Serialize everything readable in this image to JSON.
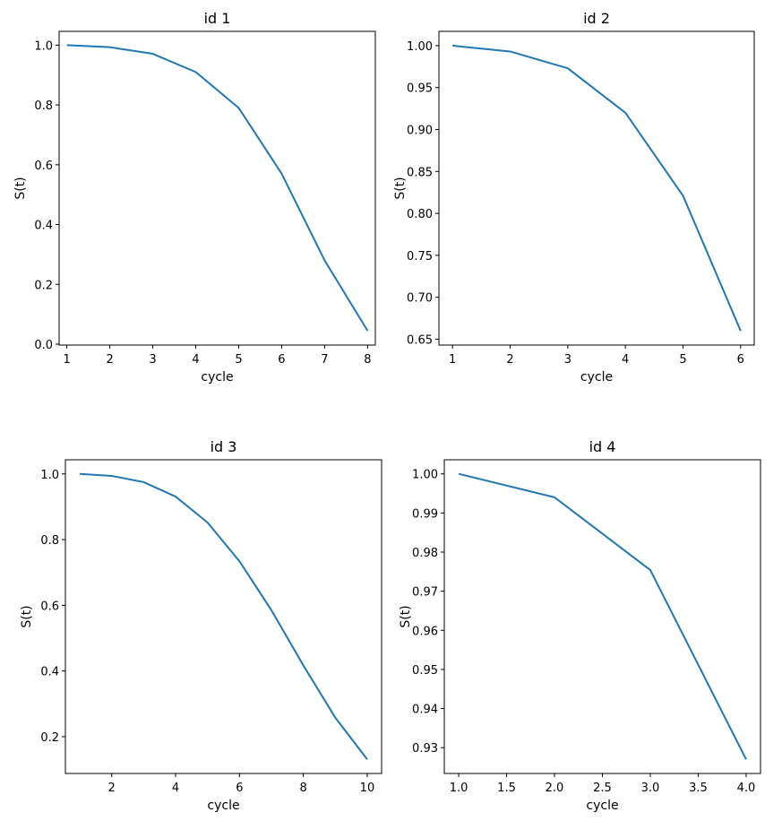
{
  "chart_data": [
    {
      "type": "line",
      "title": "id 1",
      "xlabel": "cycle",
      "ylabel": "S(t)",
      "x": [
        1,
        2,
        3,
        4,
        5,
        6,
        7,
        8
      ],
      "series": [
        {
          "values": [
            1.0,
            0.993,
            0.971,
            0.91,
            0.79,
            0.57,
            0.28,
            0.045
          ]
        }
      ],
      "xlim": [
        0.82,
        8.18
      ],
      "ylim": [
        -0.003,
        1.046
      ],
      "xticks": [
        1,
        2,
        3,
        4,
        5,
        6,
        7,
        8
      ],
      "xtick_labels": [
        "1",
        "2",
        "3",
        "4",
        "5",
        "6",
        "7",
        "8"
      ],
      "yticks": [
        0.0,
        0.2,
        0.4,
        0.6,
        0.8,
        1.0
      ],
      "ytick_labels": [
        "0.0",
        "0.2",
        "0.4",
        "0.6",
        "0.8",
        "1.0"
      ],
      "color": "#1f77b4"
    },
    {
      "type": "line",
      "title": "id 2",
      "xlabel": "cycle",
      "ylabel": "S(t)",
      "x": [
        1,
        2,
        3,
        4,
        5,
        6
      ],
      "series": [
        {
          "values": [
            1.0,
            0.993,
            0.973,
            0.92,
            0.821,
            0.66
          ]
        }
      ],
      "xlim": [
        0.764,
        6.236
      ],
      "ylim": [
        0.643,
        1.017
      ],
      "xticks": [
        1,
        2,
        3,
        4,
        5,
        6
      ],
      "xtick_labels": [
        "1",
        "2",
        "3",
        "4",
        "5",
        "6"
      ],
      "yticks": [
        0.65,
        0.7,
        0.75,
        0.8,
        0.85,
        0.9,
        0.95,
        1.0
      ],
      "ytick_labels": [
        "0.65",
        "0.70",
        "0.75",
        "0.80",
        "0.85",
        "0.90",
        "0.95",
        "1.00"
      ],
      "color": "#1f77b4"
    },
    {
      "type": "line",
      "title": "id 3",
      "xlabel": "cycle",
      "ylabel": "S(t)",
      "x": [
        1,
        2,
        3,
        4,
        5,
        6,
        7,
        8,
        9,
        10
      ],
      "series": [
        {
          "values": [
            1.0,
            0.994,
            0.975,
            0.931,
            0.852,
            0.734,
            0.585,
            0.417,
            0.258,
            0.131
          ]
        }
      ],
      "xlim": [
        0.55,
        10.45
      ],
      "ylim": [
        0.088,
        1.043
      ],
      "xticks": [
        2,
        4,
        6,
        8,
        10
      ],
      "xtick_labels": [
        "2",
        "4",
        "6",
        "8",
        "10"
      ],
      "yticks": [
        0.2,
        0.4,
        0.6,
        0.8,
        1.0
      ],
      "ytick_labels": [
        "0.2",
        "0.4",
        "0.6",
        "0.8",
        "1.0"
      ],
      "color": "#1f77b4"
    },
    {
      "type": "line",
      "title": "id 4",
      "xlabel": "cycle",
      "ylabel": "S(t)",
      "x": [
        1,
        2,
        3,
        4
      ],
      "series": [
        {
          "values": [
            1.0,
            0.994,
            0.9754,
            0.927
          ]
        }
      ],
      "xlim": [
        0.85,
        4.15
      ],
      "ylim": [
        0.9234,
        1.0036
      ],
      "xticks": [
        1.0,
        1.5,
        2.0,
        2.5,
        3.0,
        3.5,
        4.0
      ],
      "xtick_labels": [
        "1.0",
        "1.5",
        "2.0",
        "2.5",
        "3.0",
        "3.5",
        "4.0"
      ],
      "yticks": [
        0.93,
        0.94,
        0.95,
        0.96,
        0.97,
        0.98,
        0.99,
        1.0
      ],
      "ytick_labels": [
        "0.93",
        "0.94",
        "0.95",
        "0.96",
        "0.97",
        "0.98",
        "0.99",
        "1.00"
      ],
      "color": "#1f77b4"
    }
  ]
}
